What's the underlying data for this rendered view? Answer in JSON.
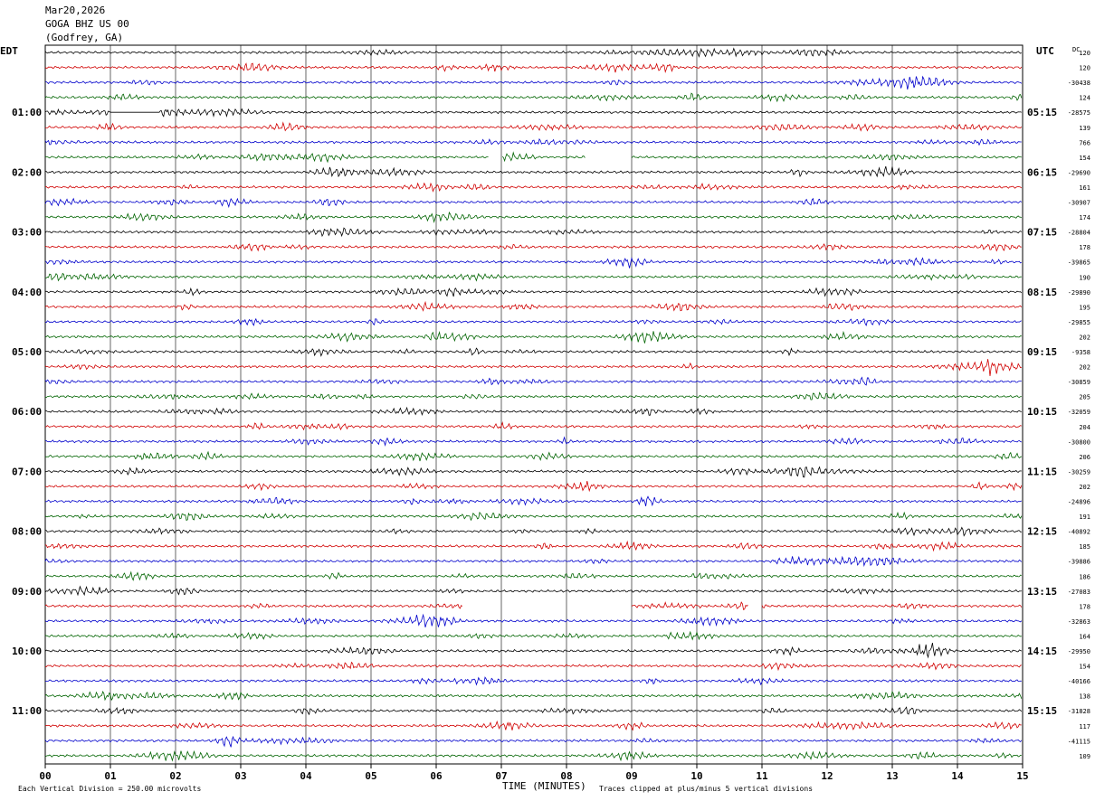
{
  "header": {
    "date": "Mar20,2026",
    "station": "GOGA BHZ US 00",
    "location": "(Godfrey, GA)"
  },
  "tz_left": "EDT",
  "tz_right": "UTC",
  "dc_label": "DC",
  "footer": {
    "scale": "Each Vertical Division =  250.00 microvolts",
    "xlabel": "TIME (MINUTES)",
    "clip": "Traces clipped at plus/minus 5 vertical divisions"
  },
  "chart_data": {
    "type": "line",
    "title": "GOGA BHZ US 00",
    "xlabel": "TIME (MINUTES)",
    "xlim": [
      0,
      15
    ],
    "x_ticks": [
      "00",
      "01",
      "02",
      "03",
      "04",
      "05",
      "06",
      "07",
      "08",
      "09",
      "10",
      "11",
      "12",
      "13",
      "14",
      "15"
    ],
    "trace_colors": [
      "#000000",
      "#d10000",
      "#0000cc",
      "#006400"
    ],
    "edt_hours": [
      "01:00",
      "02:00",
      "03:00",
      "04:00",
      "05:00",
      "06:00",
      "07:00",
      "08:00",
      "09:00",
      "10:00",
      "11:00"
    ],
    "utc_hours": [
      "05:15",
      "06:15",
      "07:15",
      "08:15",
      "09:15",
      "10:15",
      "11:15",
      "12:15",
      "13:15",
      "14:15",
      "15:15"
    ],
    "dc_values": [
      "120",
      "120",
      "-30438",
      "124",
      "-28575",
      "139",
      "766",
      "154",
      "-29690",
      "161",
      "-30907",
      "174",
      "-28804",
      "178",
      "-39865",
      "190",
      "-29890",
      "195",
      "-29855",
      "202",
      "-9358",
      "202",
      "-30859",
      "205",
      "-32059",
      "204",
      "-30800",
      "206",
      "-30259",
      "202",
      "-24896",
      "191",
      "-40892",
      "185",
      "-39886",
      "186",
      "-27083",
      "178",
      "-32863",
      "164",
      "-29950",
      "154",
      "-40166",
      "138",
      "-31828",
      "117",
      "-41115",
      "109"
    ],
    "gaps": [
      {
        "trace": 4,
        "from": 1.0,
        "to": 1.75
      },
      {
        "trace": 7,
        "from": 6.8,
        "to": 7.0
      },
      {
        "trace": 7,
        "from": 8.3,
        "to": 9.0
      },
      {
        "trace": 37,
        "from": 6.4,
        "to": 9.0
      },
      {
        "trace": 37,
        "from": 10.8,
        "to": 11.0
      }
    ]
  }
}
